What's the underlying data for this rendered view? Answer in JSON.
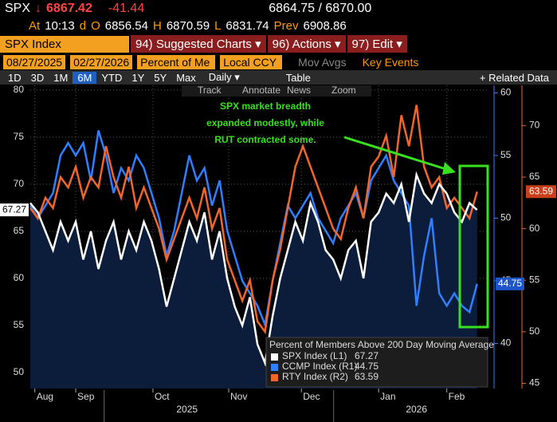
{
  "header": {
    "ticker": "SPX",
    "arrow": "↓",
    "last": "6867.42",
    "change": "-41.44",
    "bid_ask": "6864.75 / 6870.00",
    "at": "At",
    "time": "10:13",
    "d": "d",
    "o_label": "O",
    "open": "6856.54",
    "h_label": "H",
    "high": "6870.59",
    "l_label": "L",
    "low": "6831.74",
    "prev_label": "Prev",
    "prev": "6908.86"
  },
  "tabs": {
    "security": "SPX Index",
    "items": [
      "94) Suggested Charts ▾",
      "96) Actions ▾",
      "97) Edit ▾"
    ]
  },
  "controls": {
    "start": "08/27/2025",
    "end": "02/27/2026",
    "field": "Percent of Me",
    "currency": "Local CCY",
    "mov_avgs": "Mov Avgs",
    "key_events": "Key Events"
  },
  "ranges": {
    "items": [
      "1D",
      "3D",
      "1M",
      "6M",
      "YTD",
      "1Y",
      "5Y",
      "Max"
    ],
    "period": "Daily ▾",
    "table": "Table",
    "related": "+ Related Data"
  },
  "tools": [
    "Track",
    "Annotate",
    "News",
    "Zoom"
  ],
  "chart_data": {
    "type": "line",
    "legend_title": "Percent of Members Above 200 Day Moving Average",
    "annotation": [
      "SPX market breadth",
      "expanded modestly, while",
      "RUT contracted some."
    ],
    "xlim": [
      0,
      60.4
    ],
    "xticks": [
      {
        "value": 0.6,
        "label": "Aug"
      },
      {
        "value": 6,
        "label": "Sep"
      },
      {
        "value": 16.2,
        "label": "Oct"
      },
      {
        "value": 26.2,
        "label": "Nov"
      },
      {
        "value": 35.8,
        "label": "Dec"
      },
      {
        "value": 46,
        "label": "Jan"
      },
      {
        "value": 55,
        "label": "Feb"
      }
    ],
    "year_labels": [
      {
        "value": 20.7,
        "label": "2025"
      },
      {
        "value": 51,
        "label": "2026"
      }
    ],
    "ylim": [
      48.3,
      80.5
    ],
    "yticks": [
      50,
      55,
      60,
      65,
      70,
      75,
      80
    ],
    "y2lim": [
      36.4,
      60.6
    ],
    "y2ticks": [
      40,
      45,
      50,
      55,
      60
    ],
    "y3lim": [
      44.5,
      73.9
    ],
    "y3ticks": [
      45,
      50,
      55,
      60,
      65,
      70
    ],
    "grid": true,
    "series": [
      {
        "name": "SPX Index (L1)",
        "color": "#ffffff",
        "axis": "y",
        "values": [
          68,
          67,
          65,
          63,
          66,
          64,
          66,
          62,
          65,
          61,
          64,
          66,
          62,
          65,
          63,
          66,
          64,
          61,
          57,
          60,
          63,
          66,
          64,
          67,
          62,
          65,
          60,
          57,
          55,
          58,
          53,
          51,
          56,
          60,
          63,
          66,
          64,
          68,
          66,
          63,
          62,
          60,
          63,
          64,
          60,
          66,
          67,
          69,
          68,
          70,
          66,
          71,
          69,
          68,
          70,
          69,
          67,
          66,
          68,
          67.27
        ]
      },
      {
        "name": "CCMP Index (R1)",
        "color": "#2f7fff",
        "axis": "y2",
        "values": [
          51,
          50,
          51,
          52,
          55,
          56,
          55,
          56,
          53,
          57,
          55,
          52,
          54,
          53,
          55,
          54,
          52,
          50,
          47,
          49,
          52,
          55,
          53,
          54,
          51,
          53,
          49,
          47,
          45,
          44,
          43,
          41.5,
          45,
          48,
          51,
          50,
          51,
          52,
          50,
          49,
          48,
          50,
          51,
          52,
          50,
          53,
          54,
          55,
          53,
          52,
          51,
          43,
          47,
          50,
          44,
          43,
          44,
          43,
          42.5,
          44.75
        ]
      },
      {
        "name": "RTY Index (R2)",
        "color": "#f2662a",
        "axis": "y3",
        "values": [
          62,
          61,
          63,
          62,
          65,
          64,
          66,
          63,
          65,
          64,
          68,
          65,
          63,
          66,
          62,
          64,
          62,
          60,
          57,
          59,
          61,
          63,
          61,
          64,
          60,
          62,
          57,
          55,
          53,
          55,
          51,
          50,
          55,
          58,
          62,
          66,
          68,
          66,
          64,
          62,
          60,
          59,
          62,
          64,
          61,
          66,
          67,
          69,
          65,
          71,
          68,
          72,
          66,
          64,
          65,
          62,
          63,
          62,
          61,
          63.59
        ]
      }
    ]
  }
}
